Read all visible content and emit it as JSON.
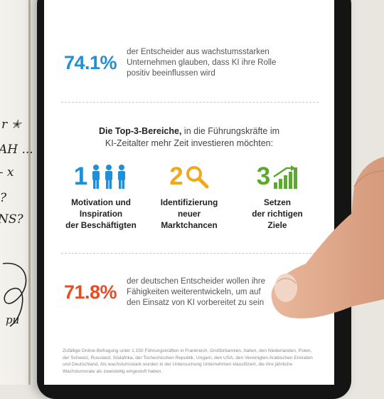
{
  "notebook": {
    "scribbles": [
      "r ✭",
      "AH ...",
      "– x",
      "?",
      "NS?",
      "?",
      "pu"
    ]
  },
  "stat_top": {
    "number": "74.1%",
    "text": "der Entscheider aus wachstumsstarken\nUnternehmen glauben, dass KI ihre Rolle\npositiv beeinflussen wird",
    "color": "#1f8fd8"
  },
  "section": {
    "heading_bold": "Die Top-3-Bereiche,",
    "heading_rest": " in die Führungskräfte im\nKI-Zeitalter mehr Zeit investieren möchten:",
    "items": [
      {
        "number": "1",
        "icon": "people-icon",
        "label": "Motivation und\nInspiration\nder Beschäftigten",
        "color": "#1f8fd8"
      },
      {
        "number": "2",
        "icon": "magnifier-icon",
        "label": "Identifizierung\nneuer\nMarktchancen",
        "color": "#f2a81d"
      },
      {
        "number": "3",
        "icon": "growth-chart-icon",
        "label": "Setzen\nder richtigen\nZiele",
        "color": "#5aaa2e"
      }
    ]
  },
  "stat_bottom": {
    "number": "71.8%",
    "text": "der deutschen Entscheider wollen ihre\nFähigkeiten weiterentwickeln, um auf\nden Einsatz von KI vorbereitet zu sein",
    "color": "#ea4c22"
  },
  "footnote": "Zufällige Online-Befragung unter 1.150 Führungskräften in Frankreich, Großbritannien, Italien, den Niederlanden, Polen, der Schweiz, Russland, Südafrika, der Tschechischen Republik, Ungarn, den USA, den Vereinigten Arabischen Emiraten und Deutschland. Als wachstumsstark wurden in der Untersuchung Unternehmen klassifiziert, die ihre jährliche Wachstumsrate als zweistellig eingestuft haben."
}
